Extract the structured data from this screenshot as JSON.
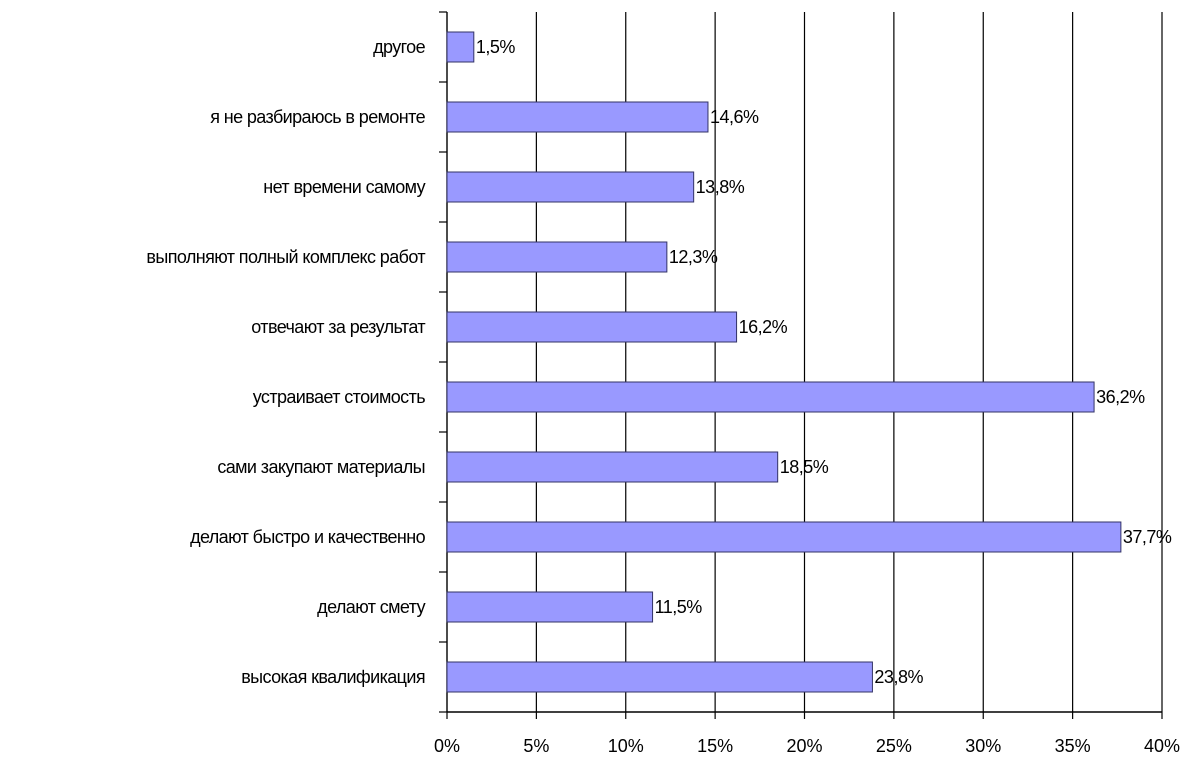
{
  "chart_data": {
    "type": "bar",
    "orientation": "horizontal",
    "title": "",
    "xlabel": "",
    "ylabel": "",
    "xlim": [
      0,
      40
    ],
    "x_ticks": [
      0,
      5,
      10,
      15,
      20,
      25,
      30,
      35,
      40
    ],
    "tick_suffix": "%",
    "grid": "vertical",
    "legend": "none",
    "bar_color": "#9999ff",
    "bar_edge_color": "#333366",
    "categories": [
      "другое",
      "я не разбираюсь в ремонте",
      "нет времени самому",
      "выполняют полный комплекс работ",
      "отвечают за результат",
      "устраивает стоимость",
      "сами закупают материалы",
      "делают быстро и качественно",
      "делают смету",
      "высокая квалификация"
    ],
    "values": [
      1.5,
      14.6,
      13.8,
      12.3,
      16.2,
      36.2,
      18.5,
      37.7,
      11.5,
      23.8
    ],
    "data_labels": [
      "1,5%",
      "14,6%",
      "13,8%",
      "12,3%",
      "16,2%",
      "36,2%",
      "18,5%",
      "37,7%",
      "11,5%",
      "23,8%"
    ]
  }
}
